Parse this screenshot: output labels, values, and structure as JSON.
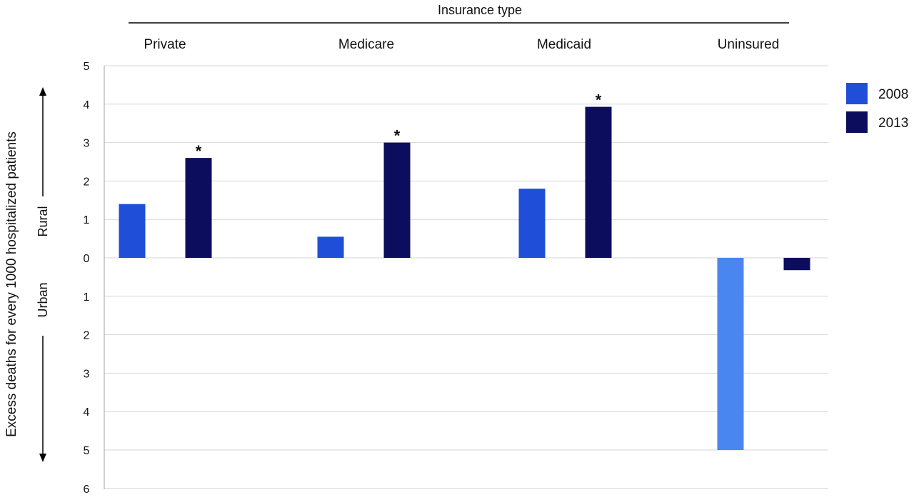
{
  "chart_data": {
    "type": "bar",
    "title": "Insurance type",
    "ylabel": "Excess deaths for every 1000 hospitalized patients",
    "direction_labels": {
      "positive": "Rural",
      "negative": "Urban"
    },
    "categories": [
      "Private",
      "Medicare",
      "Medicaid",
      "Uninsured"
    ],
    "series": [
      {
        "name": "2008",
        "color": "#1f4fd8",
        "values": [
          1.4,
          0.55,
          1.8,
          -5.0
        ]
      },
      {
        "name": "2013",
        "color": "#0d0d5e",
        "values": [
          2.6,
          3.0,
          3.93,
          -0.32
        ]
      }
    ],
    "uninsured_2008_color": "#4a86f0",
    "significance_marks": [
      {
        "category": "Private",
        "series": "2013",
        "label": "*"
      },
      {
        "category": "Medicare",
        "series": "2013",
        "label": "*"
      },
      {
        "category": "Medicaid",
        "series": "2013",
        "label": "*"
      }
    ],
    "ylim": [
      -6,
      5
    ],
    "ytick_values": [
      5,
      4,
      3,
      2,
      1,
      0,
      -1,
      -2,
      -3,
      -4,
      -5,
      -6
    ],
    "ytick_labels": [
      "5",
      "4",
      "3",
      "2",
      "1",
      "0",
      "1",
      "2",
      "3",
      "4",
      "5",
      "6"
    ],
    "grid": true,
    "legend_position": "right"
  }
}
